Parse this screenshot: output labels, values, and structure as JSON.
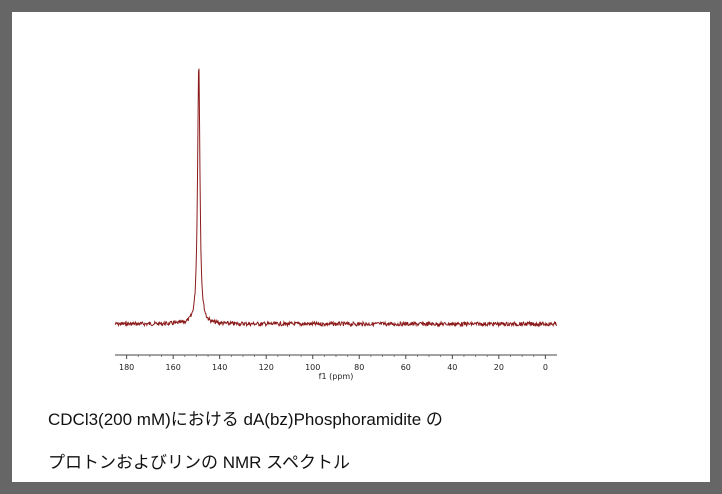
{
  "caption": {
    "line1": "CDCl3(200 mM)における dA(bz)Phosphoramidite の",
    "line2": "プロトンおよびリンの NMR スペクトル"
  },
  "chart_data": {
    "type": "line",
    "title": "",
    "xlabel": "f1 (ppm)",
    "ylabel": "",
    "xlim": [
      185,
      -5
    ],
    "x_reversed": true,
    "x_ticks": [
      180,
      160,
      140,
      120,
      100,
      80,
      60,
      40,
      20,
      0
    ],
    "x_tick_labels": [
      "180",
      "160",
      "140",
      "120",
      "100",
      "80",
      "60",
      "40",
      "20",
      "0"
    ],
    "y_axis_shown": false,
    "grid": false,
    "series": [
      {
        "color": "#8b1a1a",
        "baseline": 0,
        "noise": "random low-amplitude baseline noise across 185 to -5 ppm",
        "peaks": [
          {
            "x": 149.0,
            "height": 1.0,
            "width": 0.6
          }
        ]
      }
    ]
  }
}
